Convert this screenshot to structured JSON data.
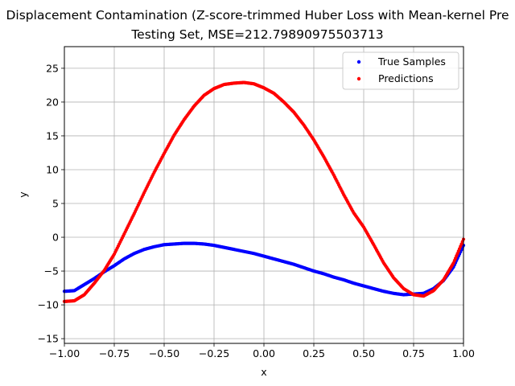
{
  "chart_data": {
    "type": "scatter",
    "title": "Displacement Contamination (Z-score-trimmed Huber Loss with Mean-kernel Pre",
    "subtitle": "Testing Set, MSE=212.79890975503713",
    "xlabel": "x",
    "ylabel": "y",
    "xlim": [
      -1.0,
      1.0
    ],
    "ylim": [
      -15.7,
      28.2
    ],
    "xticks": [
      "−1.00",
      "−0.75",
      "−0.50",
      "−0.25",
      "0.00",
      "0.25",
      "0.50",
      "0.75",
      "1.00"
    ],
    "xtick_values": [
      -1.0,
      -0.75,
      -0.5,
      -0.25,
      0.0,
      0.25,
      0.5,
      0.75,
      1.0
    ],
    "yticks": [
      "−15",
      "−10",
      "−5",
      "0",
      "5",
      "10",
      "15",
      "20",
      "25"
    ],
    "ytick_values": [
      -15,
      -10,
      -5,
      0,
      5,
      10,
      15,
      20,
      25
    ],
    "grid": true,
    "legend_position": "top-right",
    "series": [
      {
        "name": "True Samples",
        "color": "#0000ff",
        "x": [
          -1.0,
          -0.95,
          -0.9,
          -0.85,
          -0.8,
          -0.75,
          -0.7,
          -0.65,
          -0.6,
          -0.55,
          -0.5,
          -0.45,
          -0.4,
          -0.35,
          -0.3,
          -0.25,
          -0.2,
          -0.15,
          -0.1,
          -0.05,
          0.0,
          0.05,
          0.1,
          0.15,
          0.2,
          0.25,
          0.3,
          0.35,
          0.4,
          0.45,
          0.5,
          0.55,
          0.6,
          0.65,
          0.7,
          0.75,
          0.8,
          0.85,
          0.9,
          0.95,
          1.0
        ],
        "y": [
          -8.0,
          -7.9,
          -7.0,
          -6.1,
          -5.1,
          -4.2,
          -3.2,
          -2.4,
          -1.8,
          -1.4,
          -1.1,
          -1.0,
          -0.9,
          -0.9,
          -1.0,
          -1.2,
          -1.5,
          -1.8,
          -2.1,
          -2.4,
          -2.8,
          -3.2,
          -3.6,
          -4.0,
          -4.5,
          -5.0,
          -5.4,
          -5.9,
          -6.3,
          -6.8,
          -7.2,
          -7.6,
          -8.0,
          -8.3,
          -8.5,
          -8.4,
          -8.3,
          -7.6,
          -6.4,
          -4.4,
          -1.2
        ]
      },
      {
        "name": "Predictions",
        "color": "#ff0000",
        "x": [
          -1.0,
          -0.95,
          -0.9,
          -0.85,
          -0.8,
          -0.75,
          -0.7,
          -0.65,
          -0.6,
          -0.55,
          -0.5,
          -0.45,
          -0.4,
          -0.35,
          -0.3,
          -0.25,
          -0.2,
          -0.15,
          -0.1,
          -0.05,
          0.0,
          0.05,
          0.1,
          0.15,
          0.2,
          0.25,
          0.3,
          0.35,
          0.4,
          0.45,
          0.5,
          0.55,
          0.6,
          0.65,
          0.7,
          0.75,
          0.8,
          0.85,
          0.9,
          0.95,
          1.0
        ],
        "y": [
          -9.5,
          -9.4,
          -8.5,
          -6.8,
          -4.9,
          -2.5,
          0.5,
          3.5,
          6.6,
          9.6,
          12.4,
          15.1,
          17.4,
          19.4,
          21.0,
          22.0,
          22.6,
          22.8,
          22.9,
          22.7,
          22.1,
          21.3,
          20.0,
          18.5,
          16.6,
          14.4,
          11.9,
          9.2,
          6.3,
          3.6,
          1.5,
          -1.1,
          -3.8,
          -6.0,
          -7.6,
          -8.5,
          -8.7,
          -7.9,
          -6.3,
          -3.8,
          -0.3
        ]
      }
    ]
  }
}
